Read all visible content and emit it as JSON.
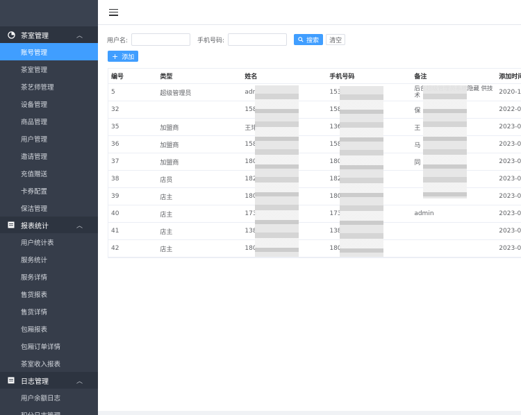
{
  "sidebar": {
    "groups": [
      {
        "title": "茶室管理",
        "items": [
          "账号管理",
          "茶室管理",
          "茶艺师管理",
          "设备管理",
          "商品管理",
          "用户管理",
          "邀请管理",
          "充值赠送",
          "卡券配置",
          "保洁管理"
        ]
      },
      {
        "title": "报表统计",
        "items": [
          "用户统计表",
          "服务统计",
          "服务详情",
          "售货报表",
          "售货详情",
          "包厢报表",
          "包厢订单详情",
          "茶室收入报表"
        ]
      },
      {
        "title": "日志管理",
        "items": [
          "用户余额日志",
          "积分日志管理"
        ]
      }
    ]
  },
  "filters": {
    "username_label": "用户名:",
    "username_value": "",
    "phone_label": "手机号码:",
    "phone_value": "",
    "search_label": "搜索",
    "clear_label": "清空",
    "add_label": "添加"
  },
  "table": {
    "headers": [
      "编号",
      "类型",
      "姓名",
      "手机号码",
      "备注",
      "添加时间"
    ],
    "rows": [
      {
        "id": "5",
        "type": "超级管理员",
        "name": "adr",
        "phone": "153",
        "note": "后台超级管理员系统隐藏 供技术",
        "time": "2020-1"
      },
      {
        "id": "32",
        "type": "",
        "name": "158",
        "phone": "158",
        "note": "保",
        "time": "2022-0"
      },
      {
        "id": "35",
        "type": "加盟商",
        "name": "王琲",
        "phone": "136",
        "note": "王",
        "time": "2023-0"
      },
      {
        "id": "36",
        "type": "加盟商",
        "name": "158",
        "phone": "158",
        "note": "马",
        "time": "2023-0"
      },
      {
        "id": "37",
        "type": "加盟商",
        "name": "180",
        "phone": "180",
        "note": "同",
        "time": "2023-0"
      },
      {
        "id": "38",
        "type": "店员",
        "name": "182",
        "phone": "182",
        "note": "",
        "time": "2023-0"
      },
      {
        "id": "39",
        "type": "店主",
        "name": "180",
        "phone": "180",
        "note": "",
        "time": "2023-0"
      },
      {
        "id": "40",
        "type": "店主",
        "name": "173",
        "phone": "173",
        "note": "admin",
        "time": "2023-0"
      },
      {
        "id": "41",
        "type": "店主",
        "name": "138",
        "phone": "138",
        "note": "",
        "time": "2023-0"
      },
      {
        "id": "42",
        "type": "店主",
        "name": "180",
        "phone": "180",
        "note": "",
        "time": "2023-0"
      }
    ]
  }
}
